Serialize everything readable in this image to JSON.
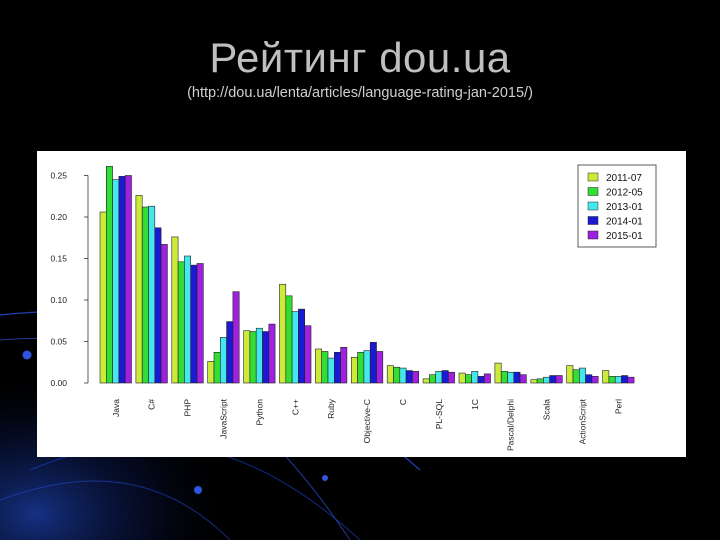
{
  "slide": {
    "title": "Рейтинг dou.ua",
    "subtitle": "(http://dou.ua/lenta/articles/language-rating-jan-2015/)"
  },
  "chart_data": {
    "type": "bar",
    "categories": [
      "Java",
      "C#",
      "PHP",
      "JavaScript",
      "Python",
      "C++",
      "Ruby",
      "Objective-C",
      "C",
      "PL-SQL",
      "1C",
      "Pascal/Delphi",
      "Scala",
      "ActionScript",
      "Perl"
    ],
    "series": [
      {
        "name": "2011-07",
        "color": "#ccea3a",
        "values": [
          0.206,
          0.226,
          0.176,
          0.026,
          0.063,
          0.119,
          0.041,
          0.031,
          0.021,
          0.005,
          0.012,
          0.024,
          0.004,
          0.021,
          0.015
        ]
      },
      {
        "name": "2012-05",
        "color": "#33dd33",
        "values": [
          0.261,
          0.212,
          0.146,
          0.037,
          0.062,
          0.105,
          0.038,
          0.037,
          0.019,
          0.01,
          0.01,
          0.014,
          0.005,
          0.016,
          0.008
        ]
      },
      {
        "name": "2013-01",
        "color": "#44e8ec",
        "values": [
          0.245,
          0.213,
          0.153,
          0.055,
          0.066,
          0.086,
          0.03,
          0.039,
          0.018,
          0.014,
          0.014,
          0.013,
          0.007,
          0.018,
          0.008
        ]
      },
      {
        "name": "2014-01",
        "color": "#1a1ad2",
        "values": [
          0.249,
          0.187,
          0.142,
          0.074,
          0.062,
          0.089,
          0.037,
          0.049,
          0.015,
          0.015,
          0.008,
          0.013,
          0.009,
          0.01,
          0.009
        ]
      },
      {
        "name": "2015-01",
        "color": "#a020e0",
        "values": [
          0.25,
          0.167,
          0.144,
          0.11,
          0.071,
          0.069,
          0.043,
          0.038,
          0.014,
          0.013,
          0.011,
          0.01,
          0.009,
          0.008,
          0.007
        ]
      }
    ],
    "yticks": [
      "0.00",
      "0.05",
      "0.10",
      "0.15",
      "0.20",
      "0.25"
    ],
    "ylim": [
      0,
      0.27
    ],
    "legend_position": "top-right",
    "grid": false
  }
}
